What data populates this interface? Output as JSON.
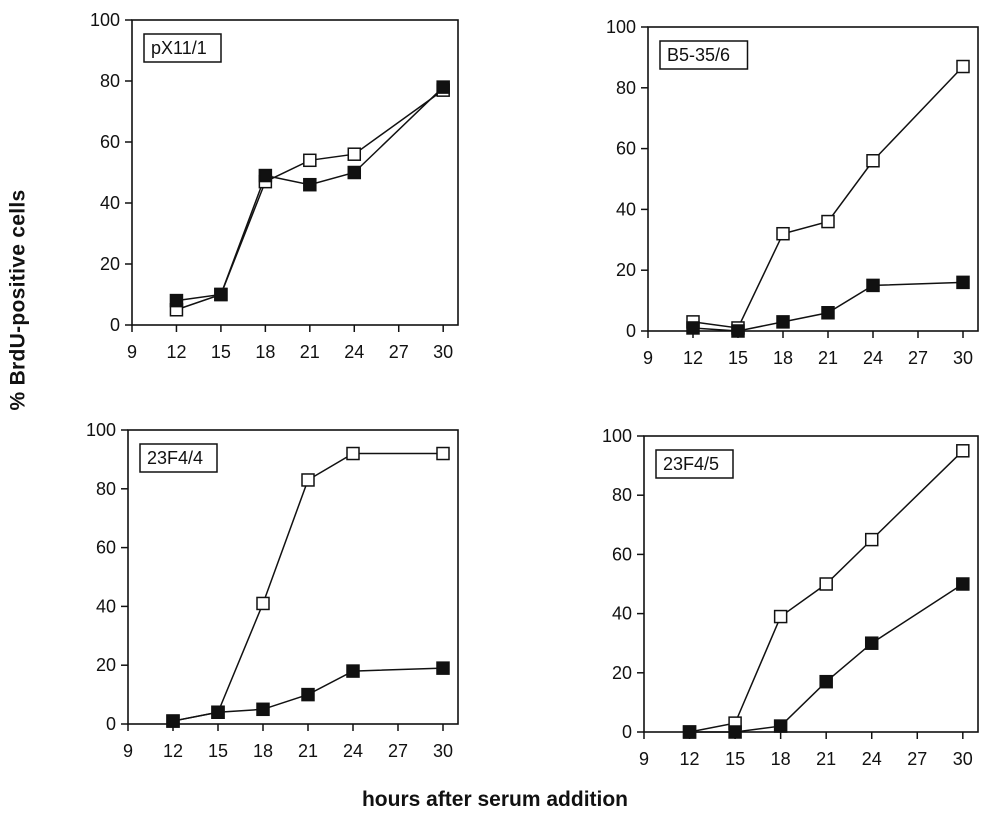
{
  "figure": {
    "ylabel": "% BrdU-positive cells",
    "xlabel": "hours after serum addition"
  },
  "chart_data": [
    {
      "type": "line",
      "title": "pX11/1",
      "xlabel": "hours after serum addition",
      "ylabel": "% BrdU-positive cells",
      "xlim": [
        9,
        31
      ],
      "ylim": [
        0,
        100
      ],
      "xticks": [
        9,
        12,
        15,
        18,
        21,
        24,
        27,
        30
      ],
      "yticks": [
        0,
        20,
        40,
        60,
        80,
        100
      ],
      "grid": false,
      "series": [
        {
          "marker": "open-square",
          "x": [
            12,
            15,
            18,
            21,
            24,
            30
          ],
          "values": [
            5,
            10,
            47,
            54,
            56,
            77
          ]
        },
        {
          "marker": "filled-square",
          "x": [
            12,
            15,
            18,
            21,
            24,
            30
          ],
          "values": [
            8,
            10,
            49,
            46,
            50,
            78
          ]
        }
      ]
    },
    {
      "type": "line",
      "title": "B5-35/6",
      "xlabel": "hours after serum addition",
      "ylabel": "% BrdU-positive cells",
      "xlim": [
        9,
        31
      ],
      "ylim": [
        0,
        100
      ],
      "xticks": [
        9,
        12,
        15,
        18,
        21,
        24,
        27,
        30
      ],
      "yticks": [
        0,
        20,
        40,
        60,
        80,
        100
      ],
      "grid": false,
      "series": [
        {
          "marker": "open-square",
          "x": [
            12,
            15,
            18,
            21,
            24,
            30
          ],
          "values": [
            3,
            1,
            32,
            36,
            56,
            87
          ]
        },
        {
          "marker": "filled-square",
          "x": [
            12,
            15,
            18,
            21,
            24,
            30
          ],
          "values": [
            1,
            0,
            3,
            6,
            15,
            16
          ]
        }
      ]
    },
    {
      "type": "line",
      "title": "23F4/4",
      "xlabel": "hours after serum addition",
      "ylabel": "% BrdU-positive cells",
      "xlim": [
        9,
        31
      ],
      "ylim": [
        0,
        100
      ],
      "xticks": [
        9,
        12,
        15,
        18,
        21,
        24,
        27,
        30
      ],
      "yticks": [
        0,
        20,
        40,
        60,
        80,
        100
      ],
      "grid": false,
      "series": [
        {
          "marker": "open-square",
          "x": [
            12,
            15,
            18,
            21,
            24,
            30
          ],
          "values": [
            1,
            4,
            41,
            83,
            92,
            92
          ]
        },
        {
          "marker": "filled-square",
          "x": [
            12,
            15,
            18,
            21,
            24,
            30
          ],
          "values": [
            1,
            4,
            5,
            10,
            18,
            19
          ]
        }
      ]
    },
    {
      "type": "line",
      "title": "23F4/5",
      "xlabel": "hours after serum addition",
      "ylabel": "% BrdU-positive cells",
      "xlim": [
        9,
        31
      ],
      "ylim": [
        0,
        100
      ],
      "xticks": [
        9,
        12,
        15,
        18,
        21,
        24,
        27,
        30
      ],
      "yticks": [
        0,
        20,
        40,
        60,
        80,
        100
      ],
      "grid": false,
      "series": [
        {
          "marker": "open-square",
          "x": [
            12,
            15,
            18,
            21,
            24,
            30
          ],
          "values": [
            0,
            3,
            39,
            50,
            65,
            95
          ]
        },
        {
          "marker": "filled-square",
          "x": [
            12,
            15,
            18,
            21,
            24,
            30
          ],
          "values": [
            0,
            0,
            2,
            17,
            30,
            50
          ]
        }
      ]
    }
  ]
}
